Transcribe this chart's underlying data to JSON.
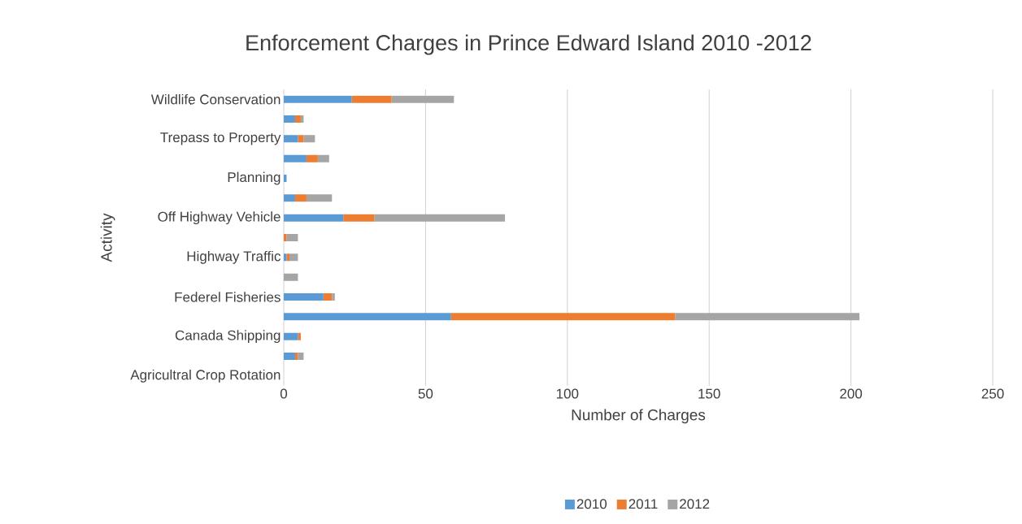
{
  "chart_data": {
    "type": "bar",
    "orientation": "horizontal",
    "stacked": true,
    "title": "Enforcement Charges in Prince Edward Island 2010 -2012",
    "xlabel": "Number of Charges",
    "ylabel": "Activity",
    "categories": [
      "Wildlife Conservation",
      null,
      "Trepass to Property",
      null,
      "Planning",
      null,
      "Off Highway Vehicle",
      null,
      "Highway Traffic",
      null,
      "Federel Fisheries",
      null,
      "Canada Shipping",
      null,
      "Agricultral Crop Rotation"
    ],
    "series": [
      {
        "name": "2010",
        "color": "#5b9bd5",
        "values": [
          24,
          4,
          5,
          8,
          1,
          4,
          21,
          0,
          1,
          0,
          14,
          59,
          5,
          4,
          0
        ]
      },
      {
        "name": "2011",
        "color": "#ed7d31",
        "values": [
          14,
          2,
          2,
          4,
          0,
          4,
          11,
          1,
          1,
          0,
          3,
          79,
          1,
          1,
          0
        ]
      },
      {
        "name": "2012",
        "color": "#a5a5a5",
        "values": [
          22,
          1,
          4,
          4,
          0,
          9,
          46,
          4,
          3,
          5,
          1,
          65,
          0,
          2,
          0
        ]
      }
    ],
    "xlim": [
      0,
      250
    ],
    "xticks": [
      0,
      50,
      100,
      150,
      200,
      250
    ],
    "grid": "x",
    "legend": "bottom"
  }
}
